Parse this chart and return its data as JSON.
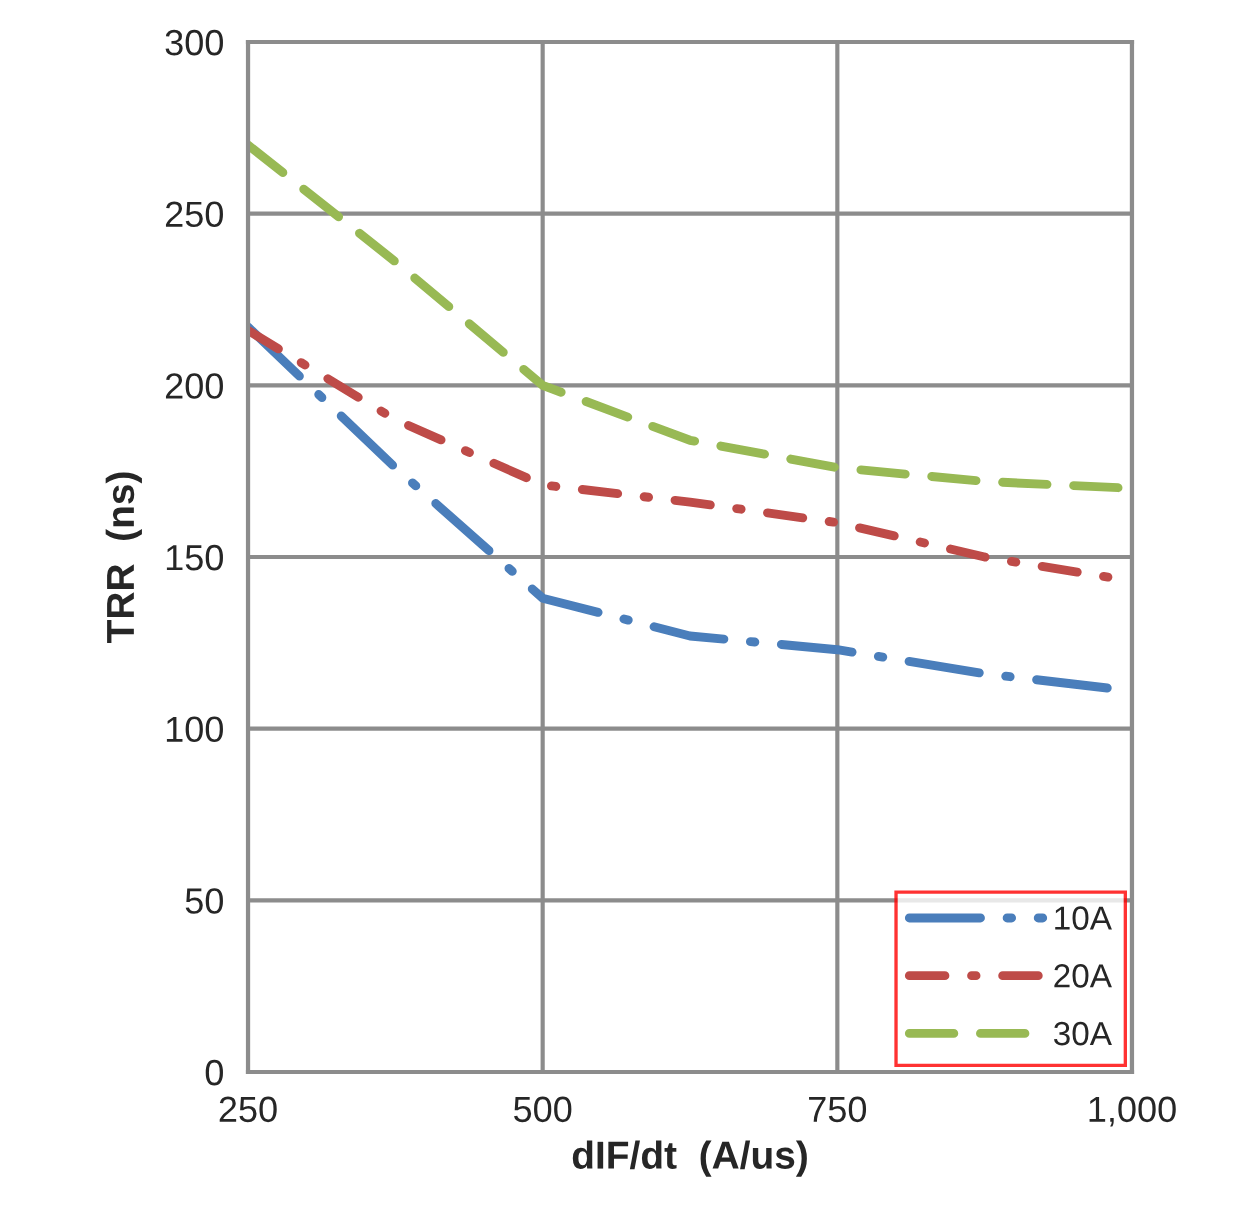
{
  "chart_data": {
    "type": "line",
    "xlabel": "dIF/dt  (A/us)",
    "ylabel": "TRR  (ns)",
    "x": [
      250,
      375,
      500,
      625,
      750,
      875,
      1000
    ],
    "series": [
      {
        "name": "10A",
        "color": "#4a7ebb",
        "line_style": "longdashdot",
        "values": [
          217,
          176,
          138,
          127,
          123,
          116,
          111
        ]
      },
      {
        "name": "20A",
        "color": "#be4b48",
        "line_style": "dashdot",
        "values": [
          216,
          190,
          171,
          166,
          160,
          150,
          143
        ]
      },
      {
        "name": "30A",
        "color": "#98b954",
        "line_style": "dashed",
        "values": [
          270,
          236,
          200,
          184,
          176,
          172,
          170
        ]
      }
    ],
    "xlim": [
      250,
      1000
    ],
    "xticks": [
      250,
      500,
      750,
      {
        "value": 1000,
        "label": "1,000"
      }
    ],
    "ylim": [
      0,
      300
    ],
    "yticks": [
      0,
      50,
      100,
      150,
      200,
      250,
      300
    ],
    "grid": true,
    "legend": "bottom right",
    "marker": "none"
  }
}
